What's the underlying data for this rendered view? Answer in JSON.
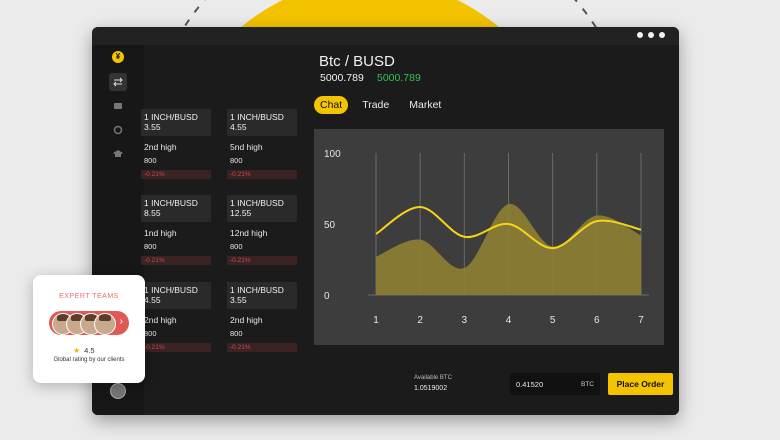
{
  "pair": {
    "title": "Btc / BUSD",
    "price": "5000.789",
    "price_change": "5000.789"
  },
  "tabs": [
    {
      "label": "Chat"
    },
    {
      "label": "Trade"
    },
    {
      "label": "Market"
    }
  ],
  "cards": [
    {
      "pair": "1 INCH/BUSD",
      "value": "3.55",
      "label": "2nd high",
      "count": "800",
      "change": "-0.21%"
    },
    {
      "pair": "1 INCH/BUSD",
      "value": "4.55",
      "label": "5nd high",
      "count": "800",
      "change": "-0.21%"
    },
    {
      "pair": "1 INCH/BUSD",
      "value": "8.55",
      "label": "1nd high",
      "count": "800",
      "change": "-0.21%"
    },
    {
      "pair": "1 INCH/BUSD",
      "value": "12.55",
      "label": "12nd high",
      "count": "800",
      "change": "-0.21%"
    },
    {
      "pair": "1 INCH/BUSD",
      "value": "4.55",
      "label": "2nd high",
      "count": "800",
      "change": "-0.21%"
    },
    {
      "pair": "1 INCH/BUSD",
      "value": "3.55",
      "label": "2nd high",
      "count": "800",
      "change": "-0.21%"
    }
  ],
  "chart_data": {
    "type": "line",
    "x": [
      1,
      2,
      3,
      4,
      5,
      6,
      7
    ],
    "ylim": [
      0,
      100
    ],
    "y_ticks": [
      "100",
      "50",
      "0"
    ],
    "x_ticks": [
      "1",
      "2",
      "3",
      "4",
      "5",
      "6",
      "7"
    ],
    "series": [
      {
        "values": [
          43,
          62,
          41,
          50,
          33,
          52,
          46
        ]
      },
      {
        "values": [
          27,
          39,
          19,
          64,
          34,
          56,
          42
        ]
      }
    ],
    "colors": {
      "line": "#f5d31a",
      "area": "#8e7f33",
      "background": "#3d3d3d"
    }
  },
  "order": {
    "available_label": "Available BTC",
    "available_value": "1.0519002",
    "amount": "0.41520",
    "unit": "BTC",
    "button": "Place Order"
  },
  "expert_card": {
    "title": "EXPERT TEAMS",
    "rating": "4.5",
    "rating_text": "Global rating by our clients"
  },
  "icons": [
    "logo-icon",
    "transfer-icon",
    "wallet-icon",
    "settings-icon",
    "graduation-cap-icon",
    "chevron-right-icon",
    "star-icon"
  ],
  "colors": {
    "accent": "#f5c400",
    "green": "#35c34a",
    "red": "#d14b45",
    "expert": "#e8706c"
  }
}
